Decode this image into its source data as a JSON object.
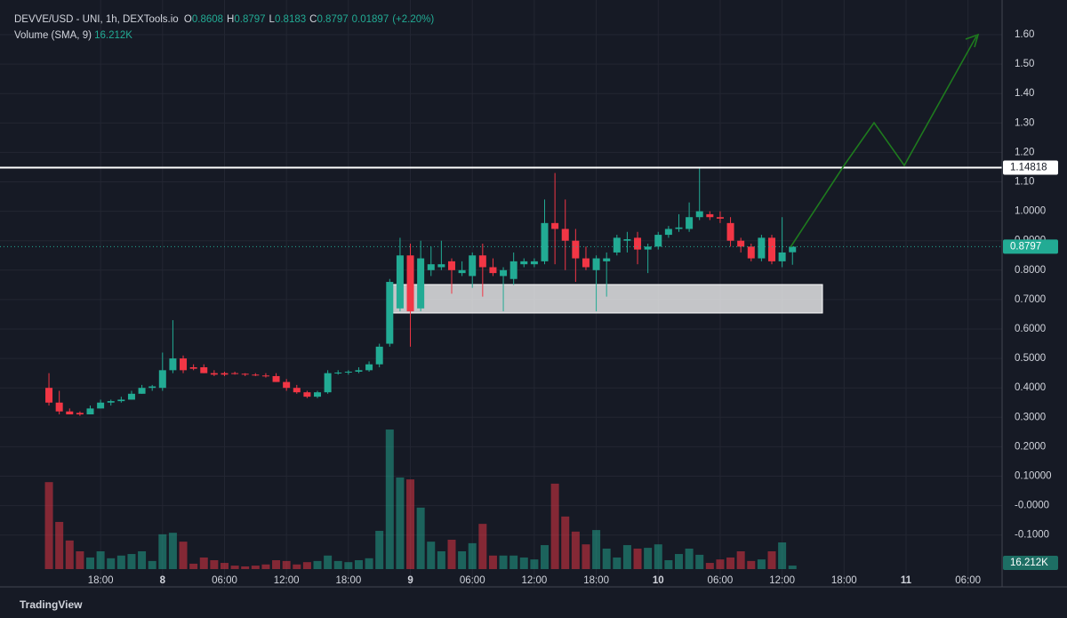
{
  "header": {
    "symbol": "DEVVE/USD - UNI, 1h, DEXTools.io",
    "open_label": "O",
    "high_label": "H",
    "low_label": "L",
    "close_label": "C",
    "change": "0.01897",
    "change_pct": "(+2.20%)",
    "volume_title": "Volume (SMA, 9)",
    "brand": "TradingView"
  },
  "chart_data": {
    "type": "candlestick",
    "x": [
      13,
      14,
      15,
      16,
      17,
      18,
      19,
      20,
      21,
      22,
      23,
      24,
      25,
      26,
      27,
      28,
      29,
      30,
      31,
      32,
      33,
      34,
      35,
      36,
      37,
      38,
      39,
      40,
      41,
      42,
      43,
      44,
      45,
      46,
      47,
      48,
      49,
      50,
      51,
      52,
      53,
      54,
      55,
      56,
      57,
      58,
      59,
      60,
      61,
      62,
      63,
      64,
      65,
      66,
      67,
      68,
      69,
      70,
      71,
      72,
      73,
      74,
      75,
      76,
      77,
      78,
      79,
      80,
      81,
      82,
      83,
      84,
      85
    ],
    "open": [
      0.4,
      0.35,
      0.32,
      0.315,
      0.31,
      0.33,
      0.35,
      0.355,
      0.36,
      0.38,
      0.4,
      0.4,
      0.46,
      0.5,
      0.47,
      0.47,
      0.45,
      0.45,
      0.45,
      0.448,
      0.445,
      0.442,
      0.44,
      0.42,
      0.4,
      0.385,
      0.37,
      0.385,
      0.45,
      0.452,
      0.455,
      0.46,
      0.48,
      0.55,
      0.67,
      0.85,
      0.67,
      0.8,
      0.81,
      0.83,
      0.79,
      0.78,
      0.85,
      0.81,
      0.78,
      0.77,
      0.82,
      0.82,
      0.83,
      0.96,
      0.94,
      0.9,
      0.84,
      0.8,
      0.83,
      0.86,
      0.9,
      0.91,
      0.87,
      0.88,
      0.92,
      0.94,
      0.94,
      0.98,
      0.99,
      0.98,
      0.96,
      0.9,
      0.88,
      0.84,
      0.91,
      0.83,
      0.8608
    ],
    "high": [
      0.45,
      0.39,
      0.33,
      0.32,
      0.34,
      0.36,
      0.36,
      0.37,
      0.39,
      0.41,
      0.41,
      0.52,
      0.63,
      0.51,
      0.48,
      0.48,
      0.46,
      0.455,
      0.455,
      0.45,
      0.45,
      0.45,
      0.45,
      0.43,
      0.41,
      0.39,
      0.39,
      0.46,
      0.46,
      0.46,
      0.47,
      0.49,
      0.55,
      0.77,
      0.91,
      0.89,
      0.9,
      0.88,
      0.9,
      0.84,
      0.83,
      0.86,
      0.89,
      0.84,
      0.81,
      0.86,
      0.84,
      0.84,
      1.04,
      1.13,
      1.04,
      0.94,
      0.88,
      0.85,
      0.86,
      0.92,
      0.93,
      0.93,
      0.89,
      0.93,
      0.95,
      0.99,
      1.03,
      1.15,
      1.0,
      1.0,
      0.98,
      0.91,
      0.89,
      0.92,
      0.92,
      0.98,
      0.8797
    ],
    "low": [
      0.34,
      0.31,
      0.31,
      0.305,
      0.31,
      0.33,
      0.34,
      0.35,
      0.36,
      0.38,
      0.39,
      0.39,
      0.45,
      0.45,
      0.46,
      0.45,
      0.44,
      0.44,
      0.445,
      0.44,
      0.44,
      0.435,
      0.42,
      0.39,
      0.38,
      0.365,
      0.365,
      0.38,
      0.445,
      0.445,
      0.45,
      0.455,
      0.47,
      0.54,
      0.66,
      0.54,
      0.66,
      0.78,
      0.8,
      0.72,
      0.78,
      0.74,
      0.71,
      0.78,
      0.66,
      0.75,
      0.81,
      0.81,
      0.82,
      0.82,
      0.8,
      0.76,
      0.8,
      0.66,
      0.71,
      0.85,
      0.86,
      0.82,
      0.79,
      0.87,
      0.91,
      0.93,
      0.93,
      0.97,
      0.97,
      0.96,
      0.88,
      0.86,
      0.83,
      0.83,
      0.82,
      0.81,
      0.8183
    ],
    "close": [
      0.35,
      0.32,
      0.31,
      0.31,
      0.33,
      0.35,
      0.355,
      0.36,
      0.38,
      0.4,
      0.405,
      0.46,
      0.5,
      0.46,
      0.465,
      0.45,
      0.445,
      0.445,
      0.448,
      0.445,
      0.442,
      0.44,
      0.42,
      0.4,
      0.385,
      0.37,
      0.385,
      0.45,
      0.452,
      0.455,
      0.46,
      0.48,
      0.54,
      0.76,
      0.85,
      0.66,
      0.84,
      0.82,
      0.82,
      0.8,
      0.8,
      0.85,
      0.81,
      0.79,
      0.8,
      0.83,
      0.83,
      0.83,
      0.96,
      0.94,
      0.9,
      0.84,
      0.81,
      0.84,
      0.84,
      0.91,
      0.905,
      0.87,
      0.88,
      0.92,
      0.94,
      0.945,
      0.98,
      1.0,
      0.98,
      0.975,
      0.9,
      0.88,
      0.84,
      0.91,
      0.83,
      0.86,
      0.8797
    ],
    "volume": [
      225,
      122,
      74,
      46,
      30,
      46,
      28,
      35,
      39,
      46,
      21,
      90,
      94,
      71,
      14,
      30,
      23,
      16,
      9,
      7,
      9,
      12,
      23,
      21,
      12,
      18,
      21,
      35,
      21,
      18,
      23,
      28,
      99,
      361,
      237,
      232,
      159,
      71,
      46,
      76,
      46,
      67,
      117,
      35,
      35,
      35,
      30,
      25,
      62,
      221,
      136,
      97,
      64,
      101,
      53,
      30,
      62,
      53,
      55,
      64,
      23,
      39,
      53,
      37,
      16,
      25,
      30,
      46,
      21,
      25,
      46,
      69,
      9
    ],
    "volume_sma": {
      "value": 16.212,
      "label": "16.212K"
    },
    "up_color": "#22ab94",
    "down_color": "#f23645",
    "hline": 1.14818,
    "xlim": [
      8.26,
      105.3
    ],
    "ylim": [
      -0.2157,
      1.7178
    ],
    "xticks": [
      {
        "value": 18,
        "label": "18:00"
      },
      {
        "value": 24,
        "label": "8"
      },
      {
        "value": 30,
        "label": "06:00"
      },
      {
        "value": 36,
        "label": "12:00"
      },
      {
        "value": 42,
        "label": "18:00"
      },
      {
        "value": 48,
        "label": "9"
      },
      {
        "value": 54,
        "label": "06:00"
      },
      {
        "value": 60,
        "label": "12:00"
      },
      {
        "value": 66,
        "label": "18:00"
      },
      {
        "value": 72,
        "label": "10"
      },
      {
        "value": 78,
        "label": "06:00"
      },
      {
        "value": 84,
        "label": "12:00"
      },
      {
        "value": 90,
        "label": "18:00"
      },
      {
        "value": 96,
        "label": "11"
      },
      {
        "value": 102,
        "label": "06:00"
      }
    ],
    "yticks": [
      {
        "value": 1.6,
        "label": "1.60"
      },
      {
        "value": 1.5,
        "label": "1.50"
      },
      {
        "value": 1.4,
        "label": "1.40"
      },
      {
        "value": 1.3,
        "label": "1.30"
      },
      {
        "value": 1.2,
        "label": "1.20"
      },
      {
        "value": 1.1,
        "label": "1.10"
      },
      {
        "value": 1.0,
        "label": "1.0000"
      },
      {
        "value": 0.9,
        "label": "0.9000"
      },
      {
        "value": 0.8,
        "label": "0.8000"
      },
      {
        "value": 0.7,
        "label": "0.7000"
      },
      {
        "value": 0.6,
        "label": "0.6000"
      },
      {
        "value": 0.5,
        "label": "0.5000"
      },
      {
        "value": 0.4,
        "label": "0.4000"
      },
      {
        "value": 0.3,
        "label": "0.3000"
      },
      {
        "value": 0.2,
        "label": "0.2000"
      },
      {
        "value": 0.1,
        "label": "0.10000"
      },
      {
        "value": 0,
        "label": "-0.0000"
      },
      {
        "value": -0.1,
        "label": "-0.1000"
      }
    ],
    "grid": true
  }
}
